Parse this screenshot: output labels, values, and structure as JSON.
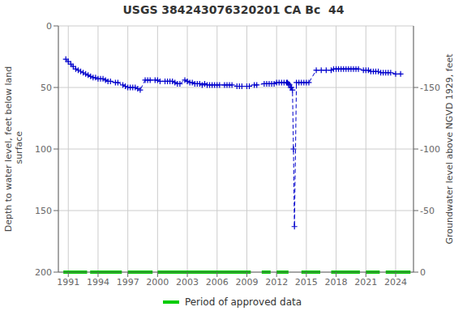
{
  "chart_data": {
    "type": "line",
    "title": "USGS 384243076320201 CA Bc  44",
    "y_label": "Depth to water level, feet below land\n surface",
    "y2_label": "Groundwater level above NGVD 1929, feet",
    "xlim": [
      1990.0,
      2025.8
    ],
    "xticks": [
      1991,
      1994,
      1997,
      2000,
      2003,
      2006,
      2009,
      2012,
      2015,
      2018,
      2021,
      2024
    ],
    "ylim": [
      200,
      0
    ],
    "yticks": [
      0,
      50,
      100,
      150,
      200
    ],
    "y2lim": [
      0,
      -200
    ],
    "y2ticks": [
      0,
      -50,
      -100,
      -150
    ],
    "grid": true,
    "x": [
      1990.75,
      1991.0,
      1991.25,
      1991.5,
      1991.75,
      1992.0,
      1992.25,
      1992.5,
      1992.75,
      1993.0,
      1993.25,
      1993.5,
      1993.75,
      1994.0,
      1994.25,
      1994.5,
      1994.75,
      1995.0,
      1995.25,
      1995.75,
      1996.0,
      1996.5,
      1996.75,
      1997.0,
      1997.25,
      1997.5,
      1997.75,
      1998.0,
      1998.25,
      1998.75,
      1999.0,
      1999.25,
      1999.75,
      2000.0,
      2000.25,
      2000.75,
      2001.0,
      2001.25,
      2001.5,
      2001.75,
      2002.0,
      2002.25,
      2002.75,
      2003.0,
      2003.25,
      2003.5,
      2003.75,
      2004.0,
      2004.25,
      2004.5,
      2004.75,
      2005.0,
      2005.25,
      2005.5,
      2005.75,
      2006.0,
      2006.25,
      2006.75,
      2007.0,
      2007.25,
      2007.5,
      2008.0,
      2008.25,
      2008.5,
      2009.0,
      2009.25,
      2009.75,
      2010.0,
      2010.75,
      2011.0,
      2011.25,
      2011.5,
      2011.75,
      2012.0,
      2012.25,
      2012.5,
      2012.75,
      2013.0,
      2013.1,
      2013.2,
      2013.3,
      2013.4,
      2013.5,
      2013.6,
      2013.7,
      2013.8,
      2014.0,
      2014.25,
      2014.5,
      2014.75,
      2015.0,
      2015.25,
      2016.0,
      2016.5,
      2017.0,
      2017.5,
      2017.75,
      2018.0,
      2018.25,
      2018.5,
      2018.75,
      2019.0,
      2019.25,
      2019.5,
      2019.75,
      2020.0,
      2020.25,
      2020.75,
      2021.0,
      2021.25,
      2021.5,
      2021.75,
      2022.0,
      2022.25,
      2022.5,
      2022.75,
      2023.0,
      2023.25,
      2023.5,
      2024.0,
      2024.5
    ],
    "series": [
      {
        "values": [
          27,
          29,
          31,
          33,
          35,
          36,
          37,
          38,
          39,
          40,
          41,
          42,
          42,
          43,
          43,
          43,
          44,
          45,
          45,
          46,
          46,
          48,
          49,
          50,
          50,
          50,
          50,
          51,
          52,
          44,
          44,
          44,
          44,
          44,
          45,
          45,
          45,
          45,
          45,
          46,
          47,
          47,
          44,
          45,
          46,
          46,
          47,
          47,
          47,
          48,
          47,
          48,
          48,
          48,
          48,
          48,
          48,
          48,
          48,
          48,
          48,
          49,
          49,
          49,
          49,
          49,
          48,
          48,
          47,
          47,
          47,
          47,
          47,
          46,
          46,
          46,
          46,
          46,
          46,
          47,
          48,
          50,
          50,
          52,
          100,
          163,
          46,
          46,
          46,
          46,
          46,
          46,
          36,
          36,
          36,
          36,
          35,
          35,
          35,
          35,
          35,
          35,
          35,
          35,
          35,
          35,
          35,
          36,
          36,
          36,
          37,
          37,
          37,
          37,
          38,
          38,
          38,
          38,
          38,
          39,
          39
        ],
        "color": "#0000cc",
        "line_style": "dashed",
        "marker": "plus"
      },
      {
        "name": "Period of approved data",
        "type": "segments",
        "color": "#00cc00",
        "y": 200,
        "ranges": [
          [
            1990.5,
            1992.9
          ],
          [
            1993.2,
            1996.4
          ],
          [
            1997.0,
            1999.5
          ],
          [
            2000.0,
            2009.4
          ],
          [
            2010.5,
            2011.4
          ],
          [
            2012.0,
            2013.2
          ],
          [
            2014.5,
            2016.4
          ],
          [
            2017.5,
            2020.4
          ],
          [
            2021.0,
            2022.4
          ],
          [
            2023.0,
            2025.5
          ]
        ]
      }
    ]
  }
}
